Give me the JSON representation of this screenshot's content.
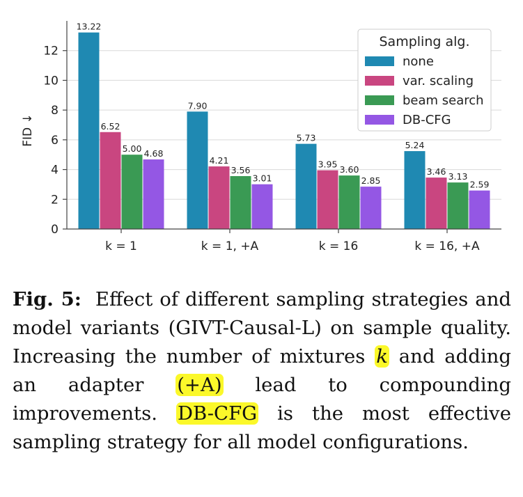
{
  "chart_data": {
    "type": "bar",
    "ylabel": "FID ↓",
    "xlabel": "",
    "ylim": [
      0,
      14
    ],
    "yticks": [
      0,
      2,
      4,
      6,
      8,
      10,
      12
    ],
    "grid": true,
    "legend_title": "Sampling alg.",
    "legend_position": "top-right",
    "categories": [
      "k = 1",
      "k = 1, +A",
      "k = 16",
      "k = 16, +A"
    ],
    "series": [
      {
        "name": "none",
        "color": "#1f89b2",
        "values": [
          13.22,
          7.9,
          5.73,
          5.24
        ]
      },
      {
        "name": "var. scaling",
        "color": "#c94680",
        "values": [
          6.52,
          4.21,
          3.95,
          3.46
        ]
      },
      {
        "name": "beam search",
        "color": "#3a9a54",
        "values": [
          5.0,
          3.56,
          3.6,
          3.13
        ]
      },
      {
        "name": "DB-CFG",
        "color": "#9457e4",
        "values": [
          4.68,
          3.01,
          2.85,
          2.59
        ]
      }
    ]
  },
  "caption": {
    "fig_label": "Fig. 5:",
    "text_1": "Effect of different sampling strategies and model variants (GIVT-Causal-L) on sample quality. Increasing the number of mixtures",
    "k_symbol": "k",
    "text_2": "and adding an adapter",
    "adapter": "(+A)",
    "text_3": "lead to compounding improvements.",
    "dbcfg": "DB-CFG",
    "text_4": "is the most effective sampling strategy for all model configurations."
  }
}
